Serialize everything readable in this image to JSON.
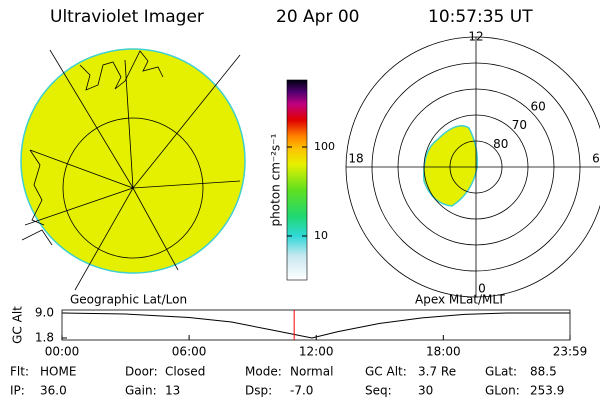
{
  "header": {
    "title": "Ultraviolet Imager",
    "date": "20 Apr 00",
    "time": "10:57:35 UT"
  },
  "colorbar": {
    "label": "photon cm⁻²s⁻¹",
    "log": true,
    "lim": [
      3.2,
      566
    ],
    "ticks": [
      10,
      100
    ]
  },
  "polar": {
    "rlim": [
      90,
      40
    ],
    "mlat_ticks": [
      80,
      70,
      60
    ],
    "mlt_ticks": [
      12,
      18,
      6,
      0
    ]
  },
  "panel_labels": {
    "left": "Geographic Lat/Lon",
    "right": "Apex MLat/MLT"
  },
  "chart_data": {
    "type": "line",
    "ylabel": "GC Alt",
    "x": [
      0,
      3,
      6,
      8,
      10,
      11.8,
      13,
      15,
      17,
      19,
      21,
      23.98
    ],
    "values": [
      9.0,
      8.7,
      7.7,
      6.4,
      4.0,
      1.8,
      3.6,
      6.0,
      7.6,
      8.6,
      9.0,
      9.0
    ],
    "color": "#000000",
    "xlim": [
      0,
      23.98
    ],
    "xticks": [
      {
        "value": 0,
        "label": "00:00"
      },
      {
        "value": 6,
        "label": "06:00"
      },
      {
        "value": 12,
        "label": "12:00"
      },
      {
        "value": 18,
        "label": "18:00"
      },
      {
        "value": 23.98,
        "label": "23:59"
      }
    ],
    "ylim": [
      1.8,
      9.0
    ],
    "yticks": [
      {
        "value": 9.0,
        "label": "9.0"
      },
      {
        "value": 1.8,
        "label": "1.8"
      }
    ],
    "marker_x": 10.96,
    "marker_color": "#ff0000"
  },
  "info": {
    "rows": [
      [
        {
          "label": "Flt:",
          "value": "HOME"
        },
        {
          "label": "Door:",
          "value": "Closed"
        },
        {
          "label": "Mode:",
          "value": "Normal"
        },
        {
          "label": "GC Alt:",
          "value": "3.7 Re"
        },
        {
          "label": "GLat:",
          "value": "88.5"
        }
      ],
      [
        {
          "label": "IP:",
          "value": "36.0"
        },
        {
          "label": "Gain:",
          "value": "13"
        },
        {
          "label": "Dsp:",
          "value": "-7.0"
        },
        {
          "label": "Seq:",
          "value": "30"
        },
        {
          "label": "GLon:",
          "value": "253.9"
        }
      ]
    ]
  }
}
